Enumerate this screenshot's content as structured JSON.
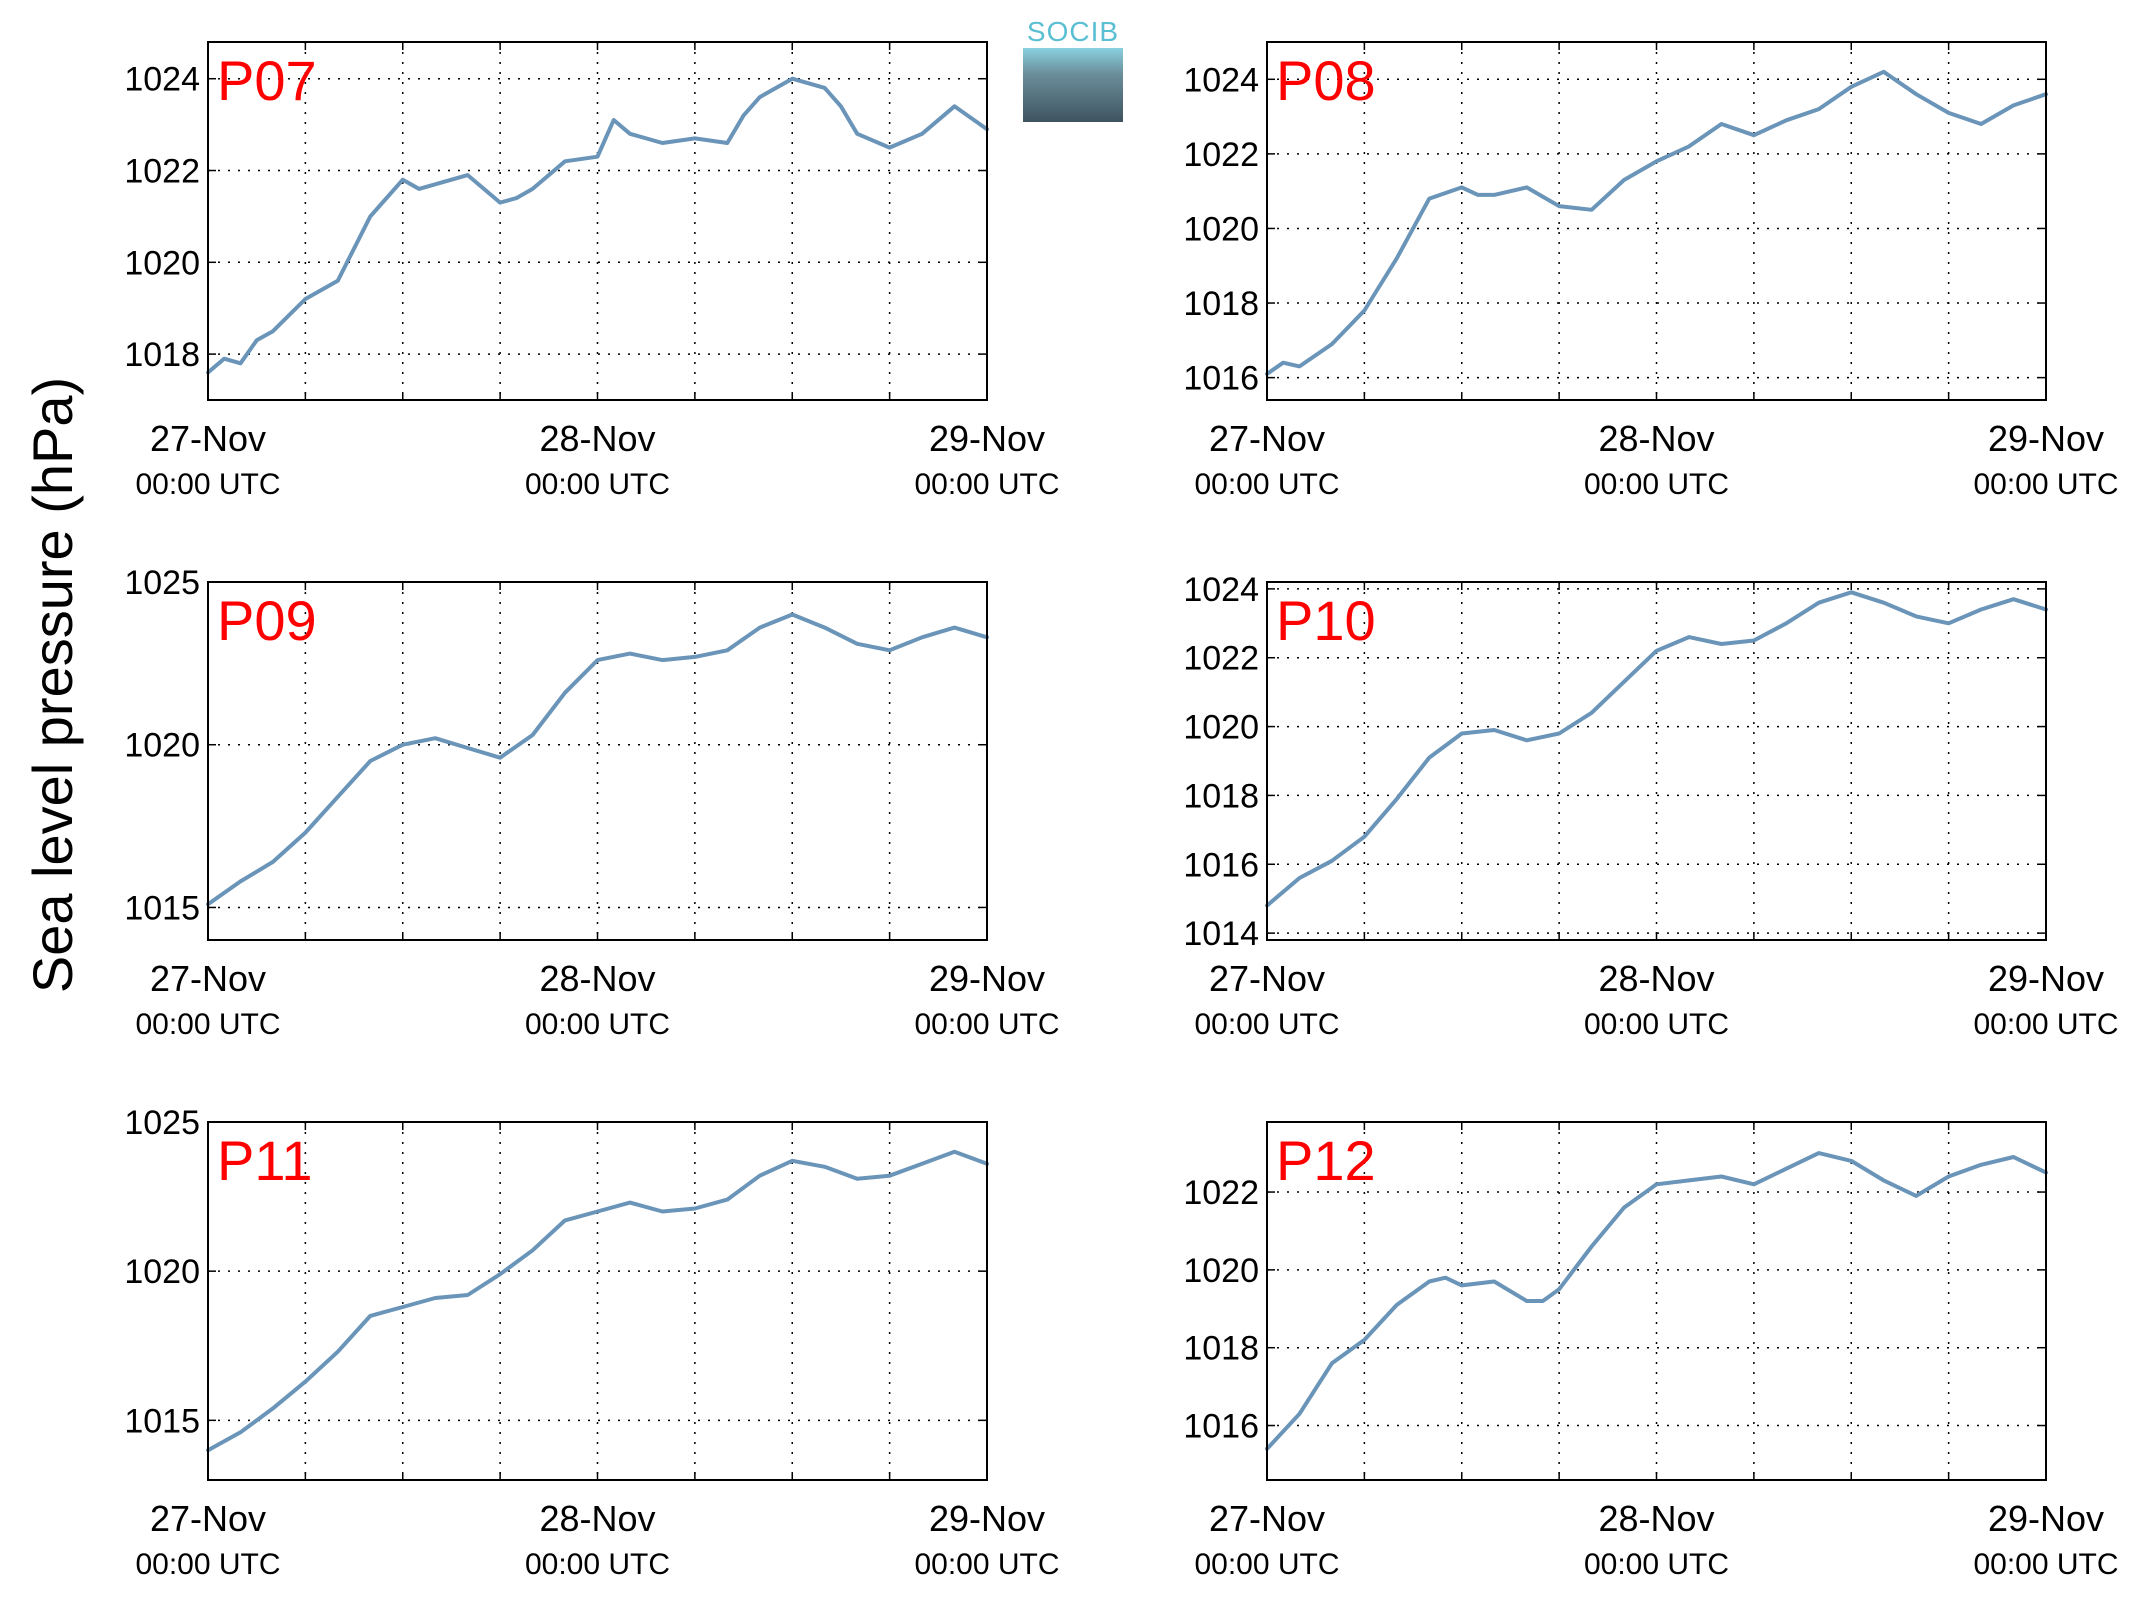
{
  "logo": {
    "text": "SOCIB"
  },
  "ylabel": "Sea level pressure (hPa)",
  "colors": {
    "line": "#6a95b9",
    "panel_label": "#ff0000"
  },
  "chart_data": [
    {
      "type": "line",
      "title": "P07",
      "x_ticks": [
        {
          "day": "27-Nov",
          "time": "00:00 UTC"
        },
        {
          "day": "28-Nov",
          "time": "00:00 UTC"
        },
        {
          "day": "29-Nov",
          "time": "00:00 UTC"
        }
      ],
      "x_range_hours": [
        0,
        48
      ],
      "ylim": [
        1017,
        1024.8
      ],
      "yticks": [
        1018,
        1020,
        1022,
        1024
      ],
      "grid": true,
      "x_hours": [
        0,
        1,
        2,
        3,
        4,
        6,
        8,
        10,
        12,
        13,
        14,
        16,
        18,
        19,
        20,
        22,
        24,
        25,
        26,
        28,
        30,
        32,
        33,
        34,
        36,
        38,
        39,
        40,
        42,
        44,
        46,
        48
      ],
      "values": [
        1017.6,
        1017.9,
        1017.8,
        1018.3,
        1018.5,
        1019.2,
        1019.6,
        1021.0,
        1021.8,
        1021.6,
        1021.7,
        1021.9,
        1021.3,
        1021.4,
        1021.6,
        1022.2,
        1022.3,
        1023.1,
        1022.8,
        1022.6,
        1022.7,
        1022.6,
        1023.2,
        1023.6,
        1024.0,
        1023.8,
        1023.4,
        1022.8,
        1022.5,
        1022.8,
        1023.4,
        1022.9
      ]
    },
    {
      "type": "line",
      "title": "P08",
      "x_ticks": [
        {
          "day": "27-Nov",
          "time": "00:00 UTC"
        },
        {
          "day": "28-Nov",
          "time": "00:00 UTC"
        },
        {
          "day": "29-Nov",
          "time": "00:00 UTC"
        }
      ],
      "x_range_hours": [
        0,
        48
      ],
      "ylim": [
        1015.4,
        1025.0
      ],
      "yticks": [
        1016,
        1018,
        1020,
        1022,
        1024
      ],
      "grid": true,
      "x_hours": [
        0,
        1,
        2,
        4,
        6,
        8,
        10,
        12,
        13,
        14,
        16,
        18,
        20,
        22,
        24,
        26,
        28,
        30,
        32,
        34,
        36,
        38,
        40,
        42,
        44,
        46,
        48
      ],
      "values": [
        1016.1,
        1016.4,
        1016.3,
        1016.9,
        1017.8,
        1019.2,
        1020.8,
        1021.1,
        1020.9,
        1020.9,
        1021.1,
        1020.6,
        1020.5,
        1021.3,
        1021.8,
        1022.2,
        1022.8,
        1022.5,
        1022.9,
        1023.2,
        1023.8,
        1024.2,
        1023.6,
        1023.1,
        1022.8,
        1023.3,
        1023.6
      ]
    },
    {
      "type": "line",
      "title": "P09",
      "x_ticks": [
        {
          "day": "27-Nov",
          "time": "00:00 UTC"
        },
        {
          "day": "28-Nov",
          "time": "00:00 UTC"
        },
        {
          "day": "29-Nov",
          "time": "00:00 UTC"
        }
      ],
      "x_range_hours": [
        0,
        48
      ],
      "ylim": [
        1014,
        1025
      ],
      "yticks": [
        1015,
        1020,
        1025
      ],
      "grid": true,
      "x_hours": [
        0,
        2,
        4,
        6,
        8,
        10,
        12,
        14,
        16,
        18,
        20,
        22,
        24,
        26,
        28,
        30,
        32,
        34,
        36,
        38,
        40,
        42,
        44,
        46,
        48
      ],
      "values": [
        1015.1,
        1015.8,
        1016.4,
        1017.3,
        1018.4,
        1019.5,
        1020.0,
        1020.2,
        1019.9,
        1019.6,
        1020.3,
        1021.6,
        1022.6,
        1022.8,
        1022.6,
        1022.7,
        1022.9,
        1023.6,
        1024.0,
        1023.6,
        1023.1,
        1022.9,
        1023.3,
        1023.6,
        1023.3
      ]
    },
    {
      "type": "line",
      "title": "P10",
      "x_ticks": [
        {
          "day": "27-Nov",
          "time": "00:00 UTC"
        },
        {
          "day": "28-Nov",
          "time": "00:00 UTC"
        },
        {
          "day": "29-Nov",
          "time": "00:00 UTC"
        }
      ],
      "x_range_hours": [
        0,
        48
      ],
      "ylim": [
        1013.8,
        1024.2
      ],
      "yticks": [
        1014,
        1016,
        1018,
        1020,
        1022,
        1024
      ],
      "grid": true,
      "x_hours": [
        0,
        2,
        4,
        6,
        8,
        10,
        12,
        14,
        16,
        18,
        20,
        22,
        24,
        26,
        28,
        30,
        32,
        34,
        36,
        38,
        40,
        42,
        44,
        46,
        48
      ],
      "values": [
        1014.8,
        1015.6,
        1016.1,
        1016.8,
        1017.9,
        1019.1,
        1019.8,
        1019.9,
        1019.6,
        1019.8,
        1020.4,
        1021.3,
        1022.2,
        1022.6,
        1022.4,
        1022.5,
        1023.0,
        1023.6,
        1023.9,
        1023.6,
        1023.2,
        1023.0,
        1023.4,
        1023.7,
        1023.4
      ]
    },
    {
      "type": "line",
      "title": "P11",
      "x_ticks": [
        {
          "day": "27-Nov",
          "time": "00:00 UTC"
        },
        {
          "day": "28-Nov",
          "time": "00:00 UTC"
        },
        {
          "day": "29-Nov",
          "time": "00:00 UTC"
        }
      ],
      "x_range_hours": [
        0,
        48
      ],
      "ylim": [
        1013,
        1025
      ],
      "yticks": [
        1015,
        1020,
        1025
      ],
      "grid": true,
      "x_hours": [
        0,
        2,
        4,
        6,
        8,
        10,
        12,
        14,
        16,
        18,
        20,
        22,
        24,
        26,
        28,
        30,
        32,
        34,
        36,
        38,
        40,
        42,
        44,
        46,
        48
      ],
      "values": [
        1014.0,
        1014.6,
        1015.4,
        1016.3,
        1017.3,
        1018.5,
        1018.8,
        1019.1,
        1019.2,
        1019.9,
        1020.7,
        1021.7,
        1022.0,
        1022.3,
        1022.0,
        1022.1,
        1022.4,
        1023.2,
        1023.7,
        1023.5,
        1023.1,
        1023.2,
        1023.6,
        1024.0,
        1023.6
      ]
    },
    {
      "type": "line",
      "title": "P12",
      "x_ticks": [
        {
          "day": "27-Nov",
          "time": "00:00 UTC"
        },
        {
          "day": "28-Nov",
          "time": "00:00 UTC"
        },
        {
          "day": "29-Nov",
          "time": "00:00 UTC"
        }
      ],
      "x_range_hours": [
        0,
        48
      ],
      "ylim": [
        1014.6,
        1023.8
      ],
      "yticks": [
        1016,
        1018,
        1020,
        1022
      ],
      "grid": true,
      "x_hours": [
        0,
        2,
        4,
        6,
        8,
        10,
        11,
        12,
        14,
        16,
        17,
        18,
        20,
        22,
        24,
        26,
        28,
        30,
        32,
        34,
        36,
        38,
        40,
        42,
        44,
        46,
        48
      ],
      "values": [
        1015.4,
        1016.3,
        1017.6,
        1018.2,
        1019.1,
        1019.7,
        1019.8,
        1019.6,
        1019.7,
        1019.2,
        1019.2,
        1019.5,
        1020.6,
        1021.6,
        1022.2,
        1022.3,
        1022.4,
        1022.2,
        1022.6,
        1023.0,
        1022.8,
        1022.3,
        1021.9,
        1022.4,
        1022.7,
        1022.9,
        1022.5
      ]
    }
  ]
}
